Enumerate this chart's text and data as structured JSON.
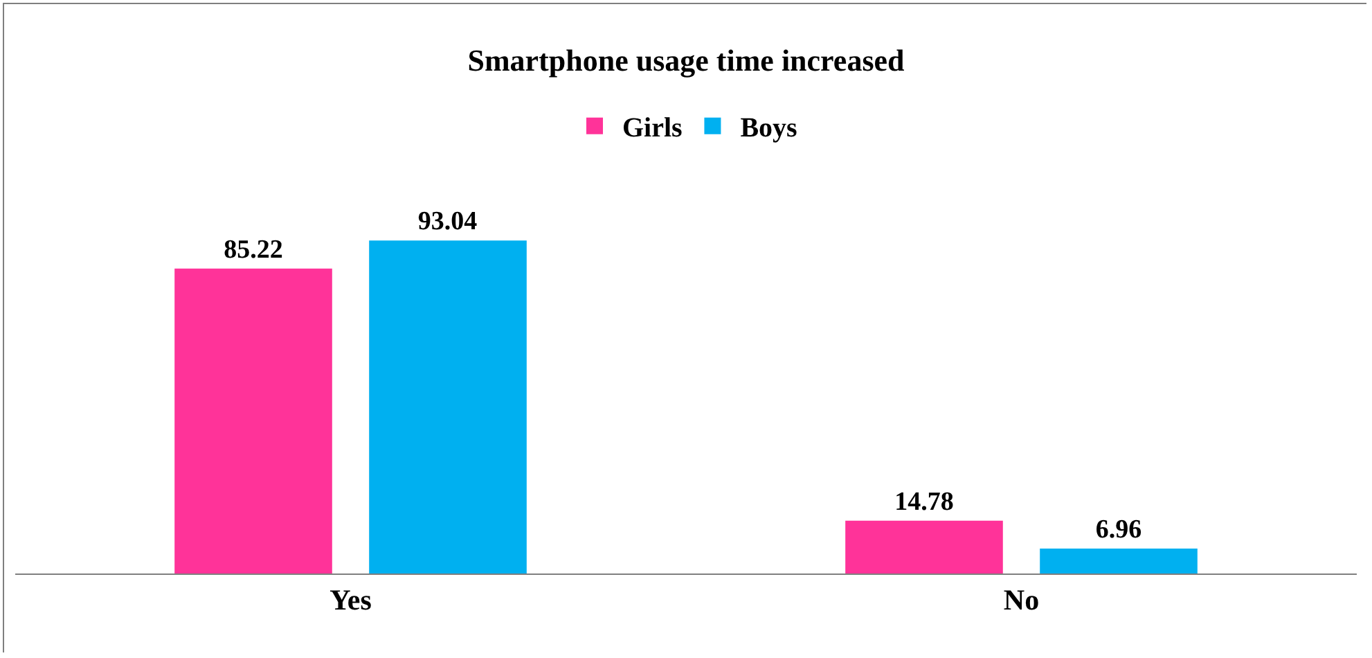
{
  "chart_data": {
    "type": "bar",
    "title": "Smartphone usage time increased",
    "categories": [
      "Yes",
      "No"
    ],
    "series": [
      {
        "name": "Girls",
        "color": "#ff3399",
        "values": [
          85.22,
          14.78
        ]
      },
      {
        "name": "Boys",
        "color": "#00b0f0",
        "values": [
          93.04,
          6.96
        ]
      }
    ],
    "data_labels": true,
    "legend": "top",
    "tick_labels": "x"
  }
}
